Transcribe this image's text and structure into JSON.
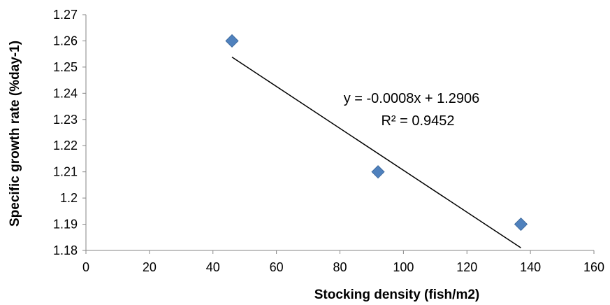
{
  "chart_data": {
    "type": "scatter",
    "xlabel": "Stocking density (fish/m2)",
    "ylabel": "Specific growth rate (%day-1)",
    "xlim": [
      0,
      160
    ],
    "ylim": [
      1.18,
      1.27
    ],
    "x_ticks": [
      "0",
      "20",
      "40",
      "60",
      "80",
      "100",
      "120",
      "140",
      "160"
    ],
    "y_ticks": [
      "1.18",
      "1.19",
      "1.2",
      "1.21",
      "1.22",
      "1.23",
      "1.24",
      "1.25",
      "1.26",
      "1.27"
    ],
    "grid": false,
    "legend": "none",
    "series": [
      {
        "x": [
          46,
          92,
          137
        ],
        "y": [
          1.26,
          1.21,
          1.19
        ],
        "marker": "diamond",
        "color": "#4F81BD"
      }
    ],
    "trendline": {
      "type": "linear",
      "slope": -0.0008,
      "intercept": 1.2906,
      "x_range": [
        46,
        137
      ],
      "color": "#000000",
      "equation": "y = -0.0008x + 1.2906",
      "r_squared": "R² = 0.9452"
    }
  }
}
